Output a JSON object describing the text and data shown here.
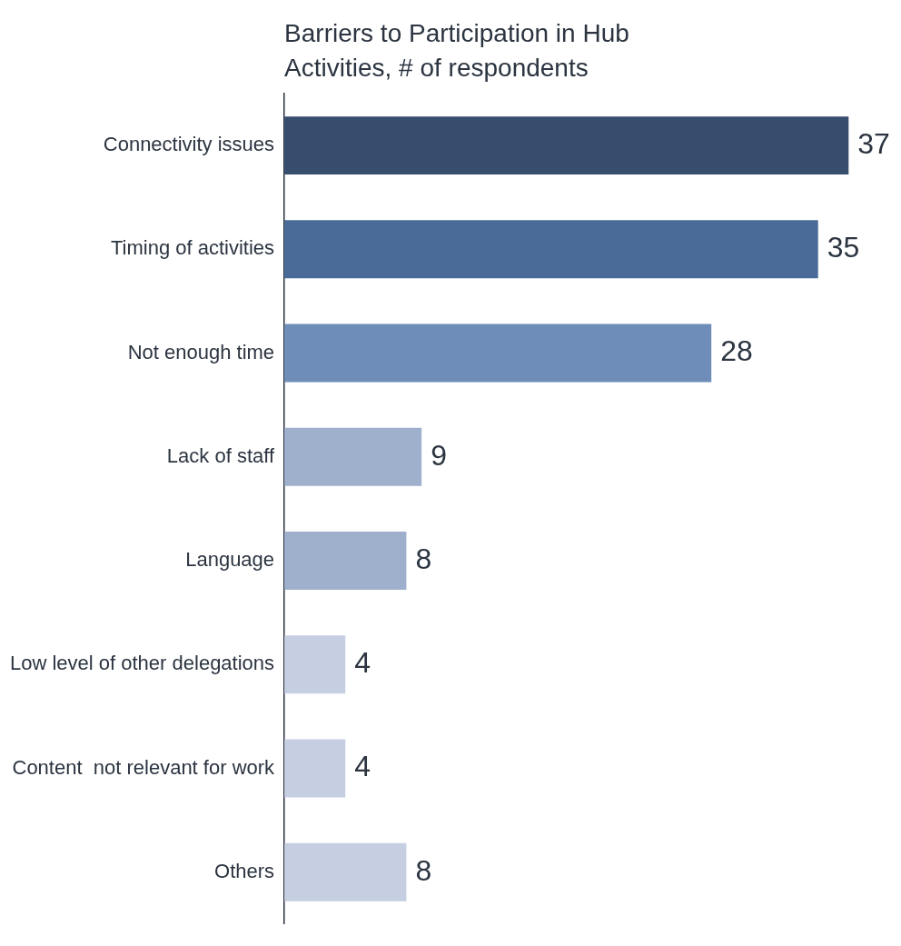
{
  "chart_data": {
    "type": "bar",
    "orientation": "horizontal",
    "title": "Barriers to Participation in Hub Activities, # of respondents",
    "categories": [
      "Connectivity issues",
      "Timing of activities",
      "Not enough time",
      "Lack of staff",
      "Language",
      "Low level of other delegations",
      "Content  not relevant for work",
      "Others"
    ],
    "values": [
      37,
      35,
      28,
      9,
      8,
      4,
      4,
      8
    ],
    "colors": [
      "#364d6e",
      "#4a6b98",
      "#6e8db8",
      "#9fb0cd",
      "#9fb0cd",
      "#c5cfe1",
      "#c5cfe1",
      "#c5cfe1"
    ],
    "data_labels": true,
    "legend": false
  }
}
